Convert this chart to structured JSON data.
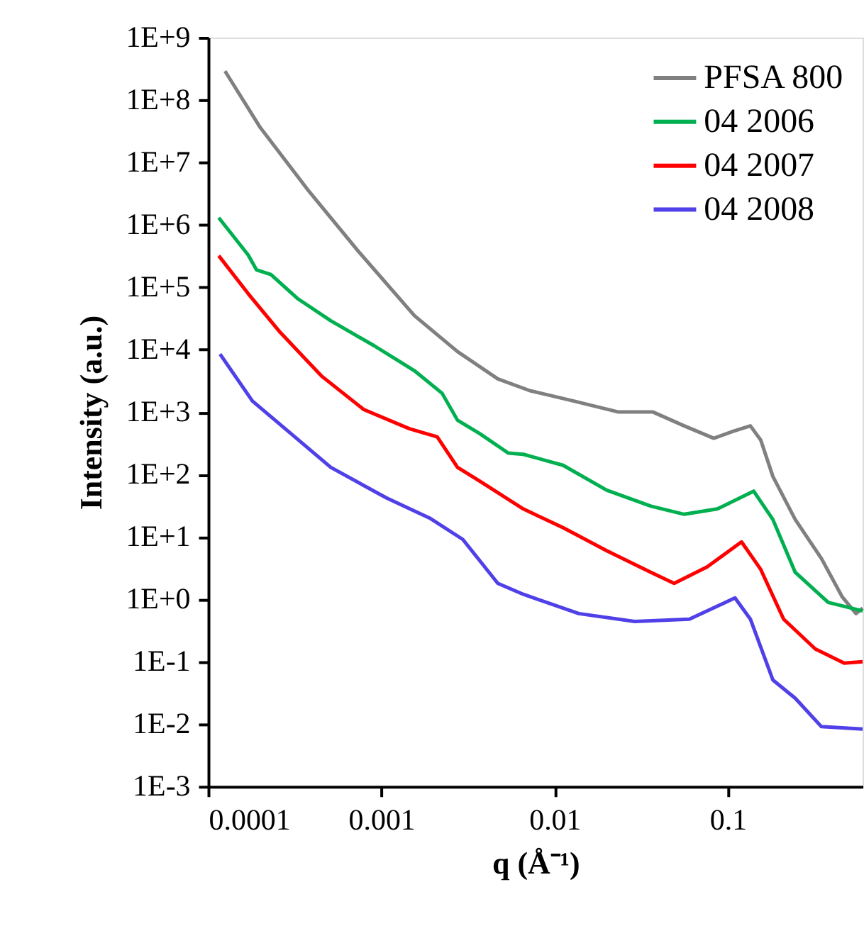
{
  "chart_data": {
    "type": "line",
    "xlabel": "q (Å⁻¹)",
    "ylabel": "Intensity (a.u.)",
    "log": "xy",
    "grid": false,
    "legend": "top right",
    "marker": "none",
    "line_style": "solid",
    "xlim": [
      0.0001,
      0.6
    ],
    "xticks": [
      0.0001,
      0.001,
      0.01,
      0.1
    ],
    "ylim": [
      0.001,
      1000000000
    ],
    "yticks": [
      {
        "value": 1000000000,
        "label": "1E+9"
      },
      {
        "value": 100000000,
        "label": "1E+8"
      },
      {
        "value": 10000000,
        "label": "1E+7"
      },
      {
        "value": 1000000,
        "label": "1E+6"
      },
      {
        "value": 100000,
        "label": "1E+5"
      },
      {
        "value": 10000,
        "label": "1E+4"
      },
      {
        "value": 1000,
        "label": "1E+3"
      },
      {
        "value": 100,
        "label": "1E+2"
      },
      {
        "value": 10,
        "label": "1E+1"
      },
      {
        "value": 1,
        "label": "1E+0"
      },
      {
        "value": 0.1,
        "label": "1E-1"
      },
      {
        "value": 0.01,
        "label": "1E-2"
      },
      {
        "value": 0.001,
        "label": "1E-3"
      }
    ],
    "series": [
      {
        "name": "PFSA 800",
        "color": "#808080",
        "x": [
          0.000125,
          0.0002,
          0.00038,
          0.00074,
          0.00155,
          0.00275,
          0.0047,
          0.0072,
          0.0129,
          0.0234,
          0.037,
          0.056,
          0.083,
          0.107,
          0.135,
          0.155,
          0.182,
          0.245,
          0.347,
          0.457,
          0.55,
          0.6
        ],
        "values": [
          290000000,
          36000000,
          3500000,
          370000,
          35000,
          9300,
          3400,
          2200,
          1500,
          1000,
          1000,
          600,
          380,
          490,
          600,
          355,
          93,
          19,
          4.5,
          1.1,
          0.59,
          0.72
        ]
      },
      {
        "name": "04 2006",
        "color": "#00b050",
        "x": [
          0.000115,
          0.00017,
          0.00019,
          0.00023,
          0.00033,
          0.00051,
          0.00091,
          0.00155,
          0.00224,
          0.00275,
          0.0037,
          0.0054,
          0.0066,
          0.0112,
          0.02,
          0.036,
          0.056,
          0.087,
          0.141,
          0.182,
          0.245,
          0.38,
          0.6
        ],
        "values": [
          1300000,
          330000,
          190000,
          160000,
          65000,
          29000,
          11500,
          4600,
          2000,
          740,
          450,
          220,
          210,
          140,
          56,
          31,
          23,
          28,
          54,
          19,
          2.7,
          0.89,
          0.65
        ]
      },
      {
        "name": "04 2007",
        "color": "#ff0000",
        "x": [
          0.000115,
          0.00017,
          0.00026,
          0.00045,
          0.00079,
          0.00145,
          0.0021,
          0.00275,
          0.0037,
          0.0066,
          0.0112,
          0.02,
          0.036,
          0.049,
          0.076,
          0.12,
          0.155,
          0.21,
          0.32,
          0.47,
          0.6
        ],
        "values": [
          320000,
          79000,
          19000,
          3800,
          1100,
          540,
          400,
          130,
          78,
          28,
          14,
          6,
          2.7,
          1.8,
          3.3,
          8.3,
          3,
          0.48,
          0.16,
          0.095,
          0.1
        ]
      },
      {
        "name": "04 2008",
        "color": "#5040e8",
        "x": [
          0.000117,
          0.00018,
          0.00029,
          0.00051,
          0.00107,
          0.0019,
          0.00295,
          0.0047,
          0.0066,
          0.0138,
          0.029,
          0.06,
          0.11,
          0.135,
          0.182,
          0.245,
          0.347,
          0.6
        ],
        "values": [
          8500,
          1500,
          490,
          130,
          42,
          20,
          9.1,
          1.8,
          1.2,
          0.59,
          0.44,
          0.48,
          1.05,
          0.48,
          0.051,
          0.026,
          0.0091,
          0.0083
        ]
      }
    ]
  }
}
